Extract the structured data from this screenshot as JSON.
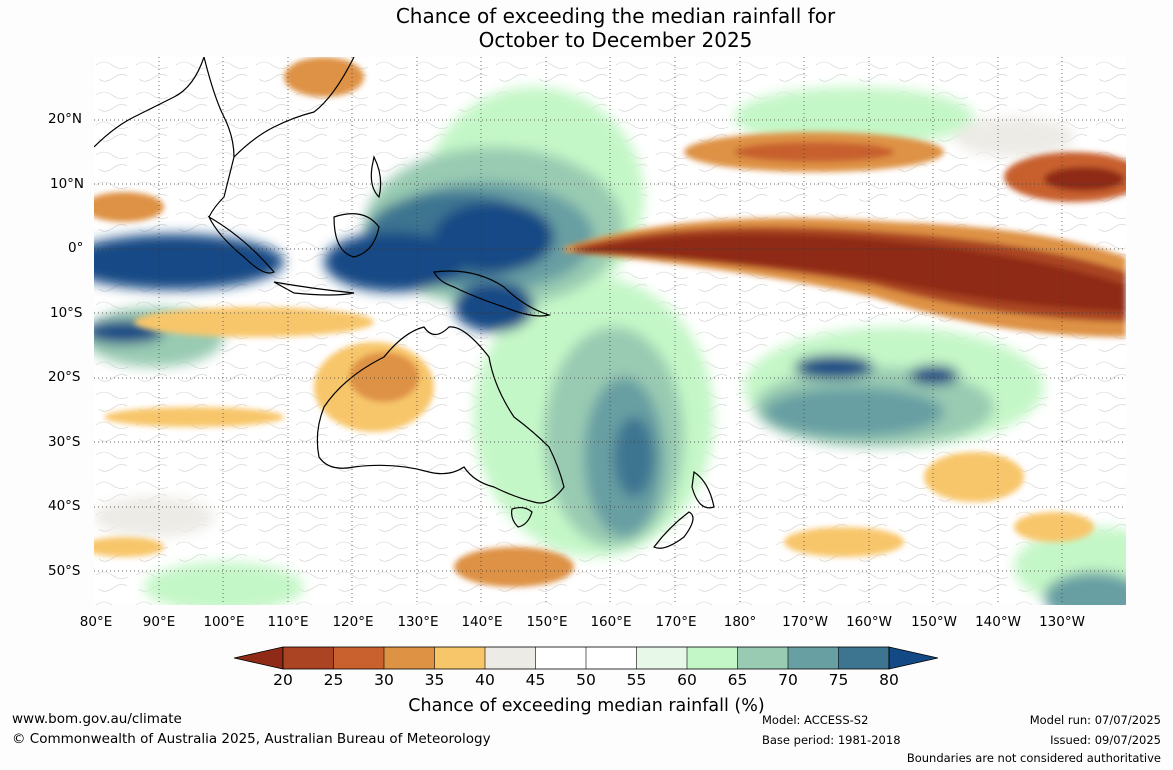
{
  "title": {
    "line1": "Chance of exceeding the median rainfall for",
    "line2": "October to December 2025"
  },
  "map": {
    "lat_labels": [
      "20°N",
      "10°N",
      "0°",
      "10°S",
      "20°S",
      "30°S",
      "40°S",
      "50°S"
    ],
    "lon_labels": [
      "80°E",
      "90°E",
      "100°E",
      "110°E",
      "120°E",
      "130°E",
      "140°E",
      "150°E",
      "160°E",
      "170°E",
      "180°",
      "170°W",
      "160°W",
      "150°W",
      "140°W",
      "130°W"
    ]
  },
  "legend": {
    "title": "Chance of exceeding median rainfall (%)",
    "ticks": [
      "20",
      "25",
      "30",
      "35",
      "40",
      "45",
      "50",
      "55",
      "60",
      "65",
      "70",
      "75",
      "80"
    ],
    "colors": [
      "#8f2a17",
      "#aa4423",
      "#c8612e",
      "#de9244",
      "#f8c66a",
      "#edebe6",
      "#ffffff",
      "#ffffff",
      "#e8f8e8",
      "#c4f7c7",
      "#99cbb2",
      "#679fa3",
      "#3d7591",
      "#134a85"
    ]
  },
  "footer": {
    "url": "www.bom.gov.au/climate",
    "copyright": "© Commonwealth of Australia 2025, Australian Bureau of Meteorology",
    "model": "Model: ACCESS-S2",
    "base_period": "Base period: 1981-2018",
    "model_run": "Model run: 07/07/2025",
    "issued": "Issued: 09/07/2025",
    "boundaries": "Boundaries are not considered authoritative"
  }
}
